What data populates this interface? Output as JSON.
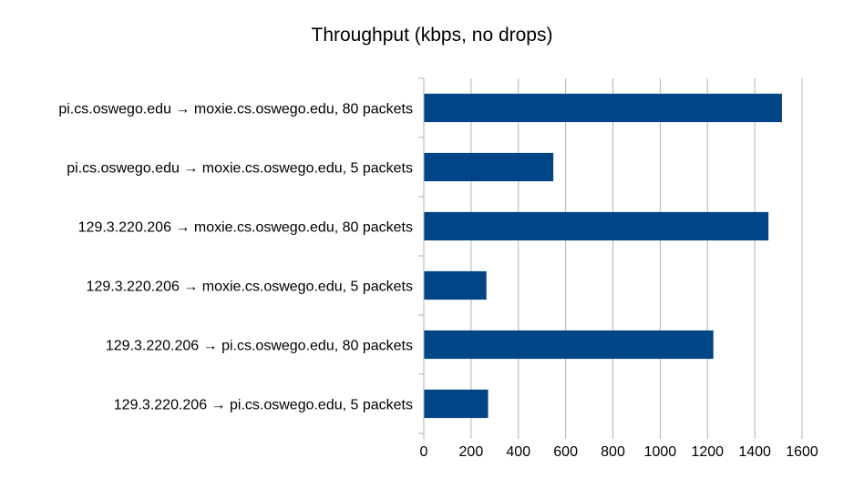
{
  "chart_data": {
    "type": "bar",
    "orientation": "horizontal",
    "title": "Throughput (kbps, no drops)",
    "xlabel": "",
    "ylabel": "",
    "categories": [
      "pi.cs.oswego.edu → moxie.cs.oswego.edu, 80 packets",
      "pi.cs.oswego.edu → moxie.cs.oswego.edu, 5 packets",
      "129.3.220.206 → moxie.cs.oswego.edu, 80 packets",
      "129.3.220.206 → moxie.cs.oswego.edu, 5 packets",
      "129.3.220.206 → pi.cs.oswego.edu, 80 packets",
      "129.3.220.206 → pi.cs.oswego.edu, 5 packets"
    ],
    "values": [
      1515,
      548,
      1458,
      265,
      1225,
      272
    ],
    "xlim": [
      0,
      1600
    ],
    "xticks": [
      0,
      200,
      400,
      600,
      800,
      1000,
      1200,
      1400,
      1600
    ],
    "grid": "vertical",
    "legend": "none",
    "bar_color": "#004586",
    "grid_color": "#b3b3b3"
  }
}
